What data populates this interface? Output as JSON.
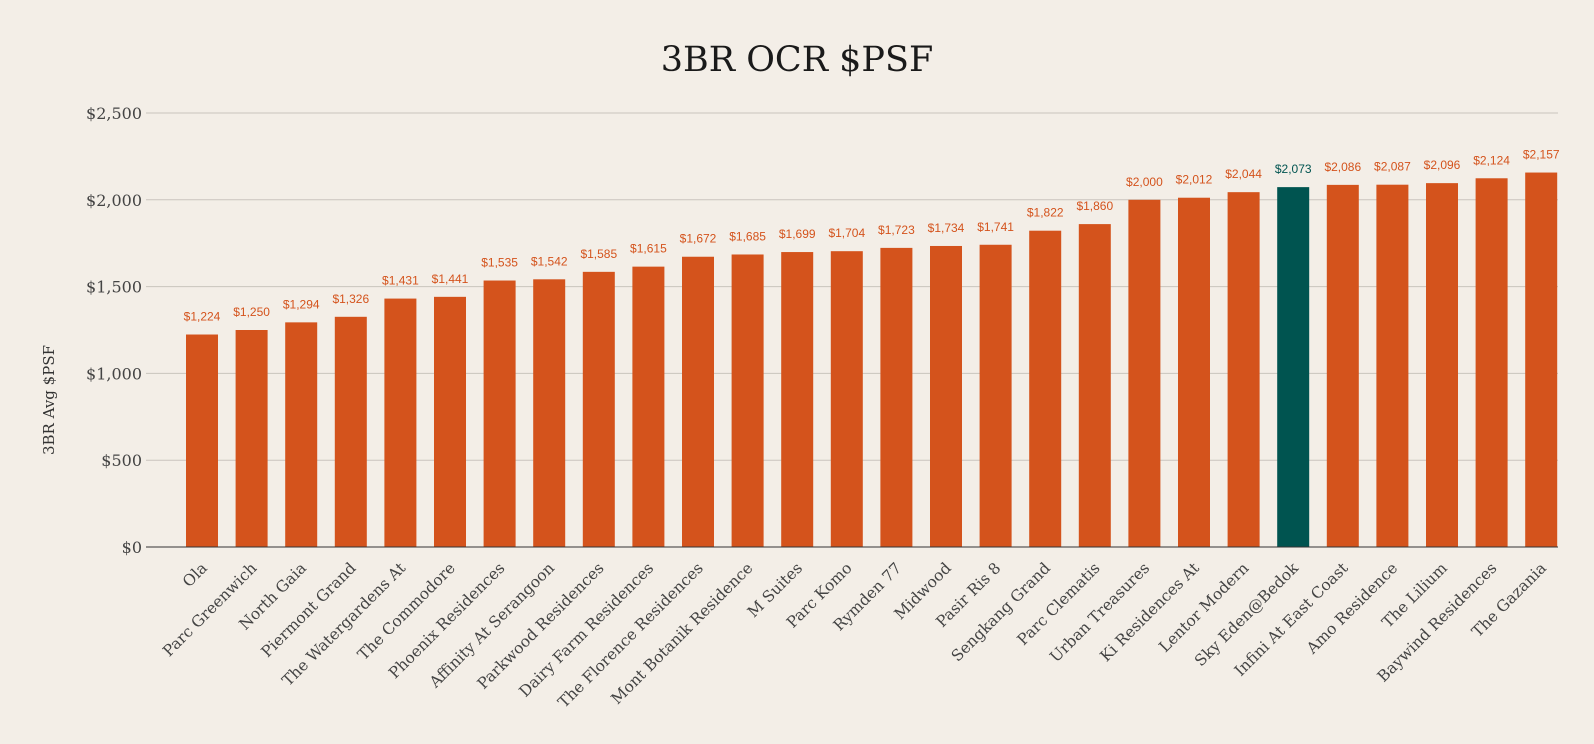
{
  "colors": {
    "background": "#f3eee7",
    "bar": "#d4531c",
    "highlight_bar": "#005450",
    "label": "#d4531c",
    "highlight_label": "#005450",
    "grid": "#c9c4bd"
  },
  "chart_data": {
    "type": "bar",
    "title": "3BR OCR $PSF",
    "xlabel": "",
    "ylabel": "3BR Avg $PSF",
    "ylim": [
      0,
      2500
    ],
    "yticks": [
      0,
      500,
      1000,
      1500,
      2000,
      2500
    ],
    "ytick_labels": [
      "$0",
      "$500",
      "$1,000",
      "$1,500",
      "$2,000",
      "$2,500"
    ],
    "grid": true,
    "legend": "none",
    "highlight": "Sky Eden@Bedok",
    "categories": [
      "Ola",
      "Parc Greenwich",
      "North Gaia",
      "Piermont Grand",
      "The Watergardens At",
      "The Commodore",
      "Phoenix Residences",
      "Affinity At Serangoon",
      "Parkwood Residences",
      "Dairy Farm Residences",
      "The Florence Residences",
      "Mont Botanik Residence",
      "M Suites",
      "Parc Komo",
      "Rymden 77",
      "Midwood",
      "Pasir Ris 8",
      "Sengkang Grand",
      "Parc Clematis",
      "Urban Treasures",
      "Ki Residences At",
      "Lentor Modern",
      "Sky Eden@Bedok",
      "Infini At East Coast",
      "Amo Residence",
      "The Lilium",
      "Baywind Residences",
      "The Gazania"
    ],
    "values": [
      1224,
      1250,
      1294,
      1326,
      1431,
      1441,
      1535,
      1542,
      1585,
      1615,
      1672,
      1685,
      1699,
      1704,
      1723,
      1734,
      1741,
      1822,
      1860,
      2000,
      2012,
      2044,
      2073,
      2086,
      2087,
      2096,
      2124,
      2157
    ],
    "value_labels": [
      "$1,224",
      "$1,250",
      "$1,294",
      "$1,326",
      "$1,431",
      "$1,441",
      "$1,535",
      "$1,542",
      "$1,585",
      "$1,615",
      "$1,672",
      "$1,685",
      "$1,699",
      "$1,704",
      "$1,723",
      "$1,734",
      "$1,741",
      "$1,822",
      "$1,860",
      "$2,000",
      "$2,012",
      "$2,044",
      "$2,073",
      "$2,086",
      "$2,087",
      "$2,096",
      "$2,124",
      "$2,157"
    ]
  }
}
